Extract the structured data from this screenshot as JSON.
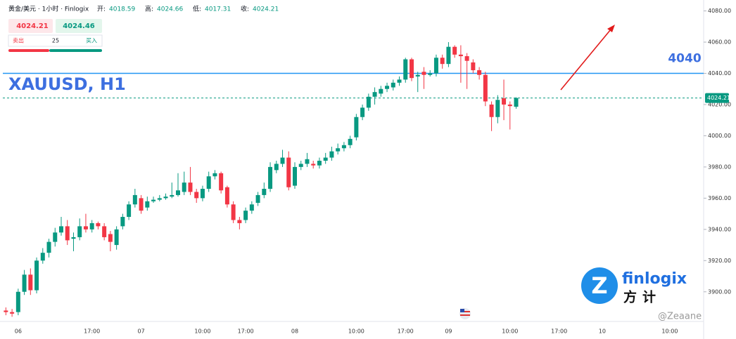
{
  "header": {
    "symbol": "黄金/美元 · 1小时 · Finlogix",
    "fields": [
      {
        "label": "开:",
        "value": 4018.59
      },
      {
        "label": "高:",
        "value": 4024.66
      },
      {
        "label": "低:",
        "value": 4017.31
      },
      {
        "label": "收:",
        "value": 4024.21
      }
    ]
  },
  "trade_panel": {
    "sell_price": 4024.21,
    "buy_price": 4024.46,
    "sell_label": "卖出",
    "buy_label": "买入",
    "quantity": 25
  },
  "logo": {
    "name": "finlogix",
    "sub": "方计"
  },
  "watermark": "@Zeaane",
  "chart_data": {
    "type": "candlestick",
    "title": "XAUUSD, H1",
    "up_color": "#089981",
    "down_color": "#f23645",
    "level": 4040,
    "level_color": "#2196f3",
    "last_price": {
      "value": 4024.21,
      "label": "4024.21"
    },
    "ylim": [
      3881,
      4087
    ],
    "yticks": [
      {
        "value": 3900,
        "label": "3900.00"
      },
      {
        "value": 3920,
        "label": "3920.00"
      },
      {
        "value": 3940,
        "label": "3940.00"
      },
      {
        "value": 3960,
        "label": "3960.00"
      },
      {
        "value": 3980,
        "label": "3980.00"
      },
      {
        "value": 4000,
        "label": "4000.00"
      },
      {
        "value": 4020,
        "label": "4020.00"
      },
      {
        "value": 4040,
        "label": "4040.00"
      },
      {
        "value": 4060,
        "label": "4060.00"
      },
      {
        "value": 4080,
        "label": "4080.00"
      }
    ],
    "grid": false,
    "categories": [
      null,
      null,
      "06",
      null,
      null,
      null,
      null,
      null,
      null,
      null,
      null,
      null,
      null,
      null,
      "17:00",
      null,
      null,
      null,
      null,
      null,
      null,
      null,
      "07",
      null,
      null,
      null,
      null,
      null,
      null,
      null,
      null,
      null,
      "10:00",
      null,
      null,
      null,
      null,
      null,
      null,
      "17:00",
      null,
      null,
      null,
      null,
      null,
      null,
      null,
      "08",
      null,
      null,
      null,
      null,
      null,
      null,
      null,
      null,
      null,
      "10:00",
      null,
      null,
      null,
      null,
      null,
      null,
      null,
      "17:00",
      null,
      null,
      null,
      null,
      null,
      null,
      "09",
      null,
      null,
      null,
      null,
      null,
      null,
      null,
      null,
      null,
      "10:00",
      null,
      null,
      null,
      null,
      null,
      null,
      null,
      "17:00",
      null,
      null,
      null,
      null,
      null,
      null,
      "10",
      null,
      null,
      null,
      null,
      null,
      null,
      null,
      null,
      null,
      null,
      "10:00",
      null,
      null,
      null,
      null,
      null
    ],
    "open": [
      3888,
      3887,
      3887,
      3900,
      3911,
      3901,
      3920,
      3925,
      3932,
      3938,
      3942,
      3934,
      3935,
      3942,
      3940,
      3944,
      3942,
      3937,
      3930,
      3942,
      3948,
      3956,
      3960,
      3954,
      3958,
      3959,
      3960,
      3961,
      3962,
      3964,
      3970,
      3964,
      3960,
      3966,
      3974,
      3976,
      3967,
      3956,
      3946,
      3946,
      3952,
      3957,
      3962,
      3966,
      3978,
      3982,
      3986,
      3968,
      3980,
      3982,
      3982,
      3981,
      3984,
      3986,
      3990,
      3992,
      3994,
      3999,
      4012,
      4018,
      4025,
      4027,
      4030,
      4031,
      4034,
      4036,
      4049,
      4038,
      4041,
      4039,
      4040,
      4050,
      4046,
      4057,
      4052,
      4051,
      4047,
      4042,
      4039,
      4020,
      4012,
      4024,
      4020,
      4018.59,
      null,
      null,
      null,
      null,
      null,
      null,
      null,
      null,
      null,
      null,
      null,
      null,
      null,
      null,
      null,
      null,
      null,
      null,
      null,
      null,
      null,
      null,
      null,
      null,
      null,
      null,
      null,
      null,
      null,
      null
    ],
    "high": [
      3890,
      3889,
      3902,
      3914,
      3915,
      3922,
      3928,
      3934,
      3941,
      3948,
      3946,
      3938,
      3947,
      3950,
      3946,
      3945,
      3944,
      3939,
      3942,
      3950,
      3958,
      3966,
      3962,
      3961,
      3961,
      3962,
      3963,
      3970,
      3976,
      3977,
      3980,
      3966,
      3968,
      3977,
      3978,
      3977,
      3968,
      3958,
      3948,
      3954,
      3958,
      3964,
      3970,
      3983,
      3984,
      3991,
      3990,
      3983,
      3984,
      3989,
      3984,
      3986,
      3989,
      3993,
      3995,
      3996,
      4000,
      4014,
      4020,
      4027,
      4031,
      4032,
      4034,
      4036,
      4038,
      4050,
      4050,
      4041,
      4044,
      4042,
      4052,
      4052,
      4060,
      4058,
      4058,
      4053,
      4049,
      4044,
      4041,
      4022,
      4026,
      4036,
      4022,
      4024.66,
      null,
      null,
      null,
      null,
      null,
      null,
      null,
      null,
      null,
      null,
      null,
      null,
      null,
      null,
      null,
      null,
      null,
      null,
      null,
      null,
      null,
      null,
      null,
      null,
      null,
      null,
      null,
      null,
      null,
      null
    ],
    "low": [
      3885,
      3884,
      3885,
      3898,
      3898,
      3899,
      3918,
      3922,
      3929,
      3936,
      3930,
      3926,
      3933,
      3938,
      3938,
      3940,
      3933,
      3926,
      3927,
      3940,
      3946,
      3954,
      3950,
      3952,
      3957,
      3958,
      3959,
      3960,
      3961,
      3962,
      3962,
      3957,
      3958,
      3964,
      3972,
      3963,
      3954,
      3944,
      3940,
      3944,
      3950,
      3955,
      3960,
      3964,
      3976,
      3980,
      3965,
      3966,
      3978,
      3980,
      3979,
      3979,
      3982,
      3984,
      3988,
      3990,
      3992,
      3997,
      4010,
      4016,
      4020,
      4025,
      4028,
      4029,
      4032,
      4034,
      4035,
      4028,
      4030,
      4038,
      4038,
      4043,
      4044,
      4050,
      4034,
      4030,
      4040,
      4036,
      4019,
      4003,
      4008,
      4010,
      4004,
      4017.31,
      null,
      null,
      null,
      null,
      null,
      null,
      null,
      null,
      null,
      null,
      null,
      null,
      null,
      null,
      null,
      null,
      null,
      null,
      null,
      null,
      null,
      null,
      null,
      null,
      null,
      null,
      null,
      null,
      null,
      null
    ],
    "close": [
      3887,
      3886,
      3900,
      3911,
      3901,
      3920,
      3925,
      3932,
      3938,
      3942,
      3933,
      3935,
      3942,
      3940,
      3944,
      3942,
      3935,
      3932,
      3940,
      3948,
      3956,
      3962,
      3952,
      3958,
      3959,
      3960,
      3961,
      3962,
      3965,
      3970,
      3964,
      3960,
      3966,
      3974,
      3976,
      3965,
      3956,
      3946,
      3944,
      3952,
      3956,
      3962,
      3966,
      3980,
      3982,
      3986,
      3967,
      3980,
      3982,
      3985,
      3981,
      3984,
      3986,
      3990,
      3992,
      3994,
      3998,
      4012,
      4018,
      4025,
      4028,
      4030,
      4032,
      4034,
      4036,
      4049,
      4037,
      4039,
      4039,
      4040,
      4050,
      4046,
      4057,
      4052,
      4051,
      4048,
      4042,
      4039,
      4022,
      4012,
      4023,
      4020,
      4019,
      4024.21,
      null,
      null,
      null,
      null,
      null,
      null,
      null,
      null,
      null,
      null,
      null,
      null,
      null,
      null,
      null,
      null,
      null,
      null,
      null,
      null,
      null,
      null,
      null,
      null,
      null,
      null,
      null,
      null,
      null,
      null
    ]
  }
}
